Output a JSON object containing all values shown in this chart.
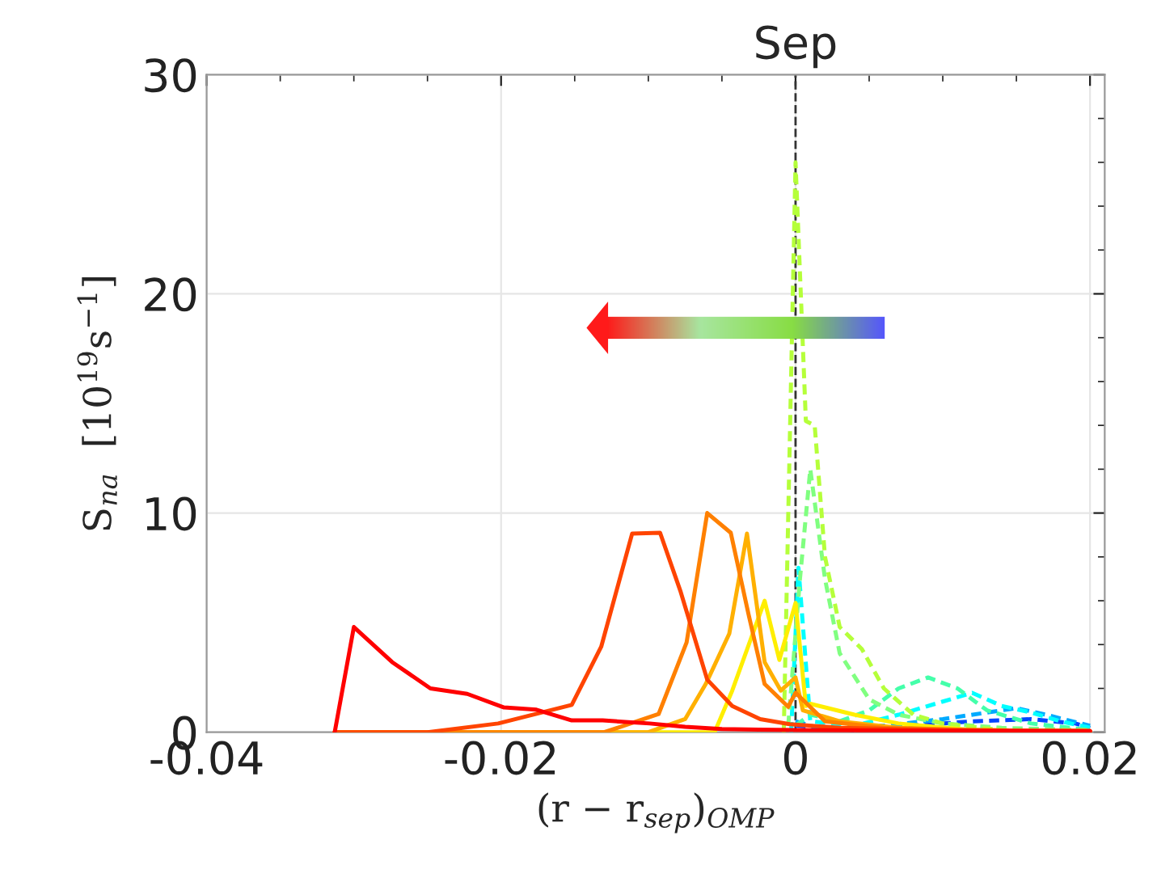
{
  "chart_data": {
    "type": "line",
    "xlabel": "(r − r$_{sep}$)$_{OMP}$",
    "ylabel": "S$_{na}$  [10$^{19}$s$^{−1}$]",
    "xlim": [
      -0.04,
      0.021
    ],
    "ylim": [
      0,
      30
    ],
    "xticks": [
      -0.04,
      -0.02,
      0,
      0.02
    ],
    "yticks": [
      0,
      10,
      20,
      30
    ],
    "grid": true,
    "legend": false,
    "ref_lines": [
      {
        "axis": "x",
        "value": 0,
        "label": "Sep",
        "color": "#333333",
        "line_style": "dashed"
      }
    ],
    "series": [
      {
        "color": "#ff0000",
        "line_style": "solid",
        "x": [
          -0.0313,
          -0.03,
          -0.0274,
          -0.0248,
          -0.0223,
          -0.0198,
          -0.0176,
          -0.0152,
          -0.0131,
          -0.0099,
          -0.0075,
          -0.005,
          -0.0025,
          0,
          0.005,
          0.01,
          0.015,
          0.02
        ],
        "values": [
          0,
          4.8,
          3.2,
          2.0,
          1.75,
          1.13,
          1.03,
          0.54,
          0.54,
          0.4,
          0.25,
          0.15,
          0.12,
          0.1,
          0.08,
          0.06,
          0.05,
          0.05
        ]
      },
      {
        "color": "#ff4400",
        "line_style": "solid",
        "x": [
          -0.0313,
          -0.025,
          -0.0202,
          -0.0152,
          -0.0132,
          -0.0111,
          -0.0092,
          -0.0078,
          -0.006,
          -0.0043,
          -0.0024,
          -0.0004,
          0.003,
          0.01,
          0.02
        ],
        "values": [
          0,
          0,
          0.4,
          1.25,
          3.9,
          9.06,
          9.1,
          6.4,
          2.4,
          1.2,
          0.6,
          0.37,
          0.2,
          0.1,
          0.05
        ]
      },
      {
        "color": "#ff8000",
        "line_style": "solid",
        "x": [
          -0.0313,
          -0.013,
          -0.0093,
          -0.0074,
          -0.006,
          -0.0044,
          -0.0032,
          -0.0021,
          -0.0005,
          0,
          0.002,
          0.006,
          0.012,
          0.02
        ],
        "values": [
          0,
          0,
          0.83,
          4.1,
          10.0,
          9.1,
          5.4,
          2.2,
          1.16,
          1.8,
          0.5,
          0.2,
          0.1,
          0.05
        ]
      },
      {
        "color": "#ffb000",
        "line_style": "solid",
        "x": [
          -0.0313,
          -0.01,
          -0.0075,
          -0.0061,
          -0.0045,
          -0.0033,
          -0.0021,
          -0.001,
          0,
          0.0005,
          0.003,
          0.007,
          0.012,
          0.02
        ],
        "values": [
          0,
          0,
          0.6,
          2.2,
          4.5,
          9.06,
          3.2,
          1.9,
          2.5,
          1.0,
          0.5,
          0.2,
          0.1,
          0.05
        ]
      },
      {
        "color": "#ffee00",
        "line_style": "solid",
        "x": [
          -0.0313,
          -0.0055,
          -0.0043,
          -0.0021,
          -0.0011,
          0,
          0.0007,
          0.001,
          0.004,
          0.007,
          0.012,
          0.02
        ],
        "values": [
          0,
          0,
          1.9,
          6.0,
          3.3,
          5.9,
          1.2,
          1.3,
          0.8,
          0.4,
          0.1,
          0.05
        ]
      },
      {
        "color": "#b5ff3a",
        "line_style": "dashed",
        "x": [
          -0.0008,
          0,
          0.0007,
          0.0013,
          0.002,
          0.003,
          0.0045,
          0.006,
          0.008,
          0.01,
          0.014,
          0.02
        ],
        "values": [
          0,
          26,
          14.2,
          14,
          8,
          4.8,
          3.8,
          2.0,
          0.8,
          0.4,
          0.1,
          0
        ]
      },
      {
        "color": "#80ff80",
        "line_style": "dashed",
        "x": [
          -0.0005,
          0.0003,
          0.001,
          0.002,
          0.003,
          0.005,
          0.007,
          0.01,
          0.014,
          0.02
        ],
        "values": [
          0.3,
          7,
          12,
          7,
          3.6,
          1.5,
          0.8,
          0.4,
          0.2,
          0.1
        ]
      },
      {
        "color": "#44ffaa",
        "line_style": "dashed",
        "x": [
          0,
          0.001,
          0.003,
          0.005,
          0.007,
          0.009,
          0.011,
          0.013,
          0.016,
          0.02
        ],
        "values": [
          0.3,
          0.8,
          0.5,
          1.0,
          2.0,
          2.5,
          2.0,
          1.0,
          0.4,
          0.1
        ]
      },
      {
        "color": "#00ffff",
        "line_style": "dashed",
        "x": [
          -0.0003,
          0.0002,
          0.001,
          0.004,
          0.007,
          0.01,
          0.012,
          0.014,
          0.016,
          0.018,
          0.02
        ],
        "values": [
          0,
          7.5,
          0.5,
          0.3,
          0.8,
          1.4,
          1.8,
          1.2,
          0.9,
          0.5,
          0.2
        ]
      },
      {
        "color": "#00aaff",
        "line_style": "dashed",
        "x": [
          0,
          0.002,
          0.006,
          0.01,
          0.013,
          0.015,
          0.017,
          0.02
        ],
        "values": [
          0.5,
          0.1,
          0.3,
          0.6,
          0.9,
          1.1,
          0.8,
          0.3
        ]
      },
      {
        "color": "#0044ff",
        "line_style": "dashed",
        "x": [
          0,
          0.004,
          0.008,
          0.012,
          0.016,
          0.019,
          0.02
        ],
        "values": [
          0.3,
          0.1,
          0.3,
          0.5,
          0.6,
          0.4,
          0.2
        ]
      }
    ]
  }
}
